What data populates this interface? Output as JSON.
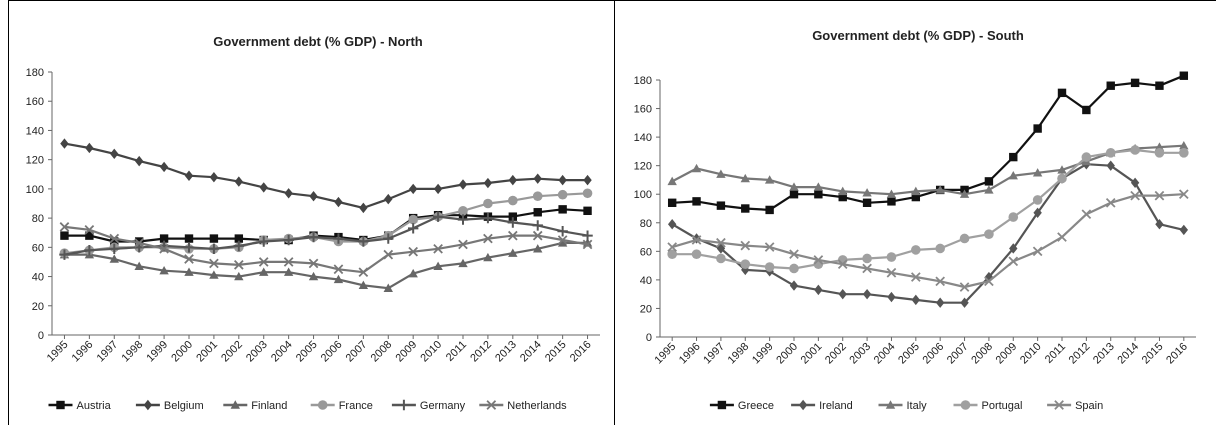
{
  "chart_data": [
    {
      "type": "line",
      "title": "Government debt (% GDP) - North",
      "xlabel": "",
      "ylabel": "",
      "ylim": [
        0,
        180
      ],
      "yticks": [
        0,
        20,
        40,
        60,
        80,
        100,
        120,
        140,
        160,
        180
      ],
      "grid": false,
      "legend": "bottom",
      "x": [
        "1995",
        "1996",
        "1997",
        "1998",
        "1999",
        "2000",
        "2001",
        "2002",
        "2003",
        "2004",
        "2005",
        "2006",
        "2007",
        "2008",
        "2009",
        "2010",
        "2011",
        "2012",
        "2013",
        "2014",
        "2015",
        "2016"
      ],
      "series": [
        {
          "name": "Austria",
          "marker": "square",
          "color": "#111111",
          "values": [
            68,
            68,
            64,
            64,
            66,
            66,
            66,
            66,
            65,
            65,
            68,
            67,
            65,
            68,
            80,
            82,
            82,
            81,
            81,
            84,
            86,
            85
          ]
        },
        {
          "name": "Belgium",
          "marker": "diamond",
          "color": "#444444",
          "values": [
            131,
            128,
            124,
            119,
            115,
            109,
            108,
            105,
            101,
            97,
            95,
            91,
            87,
            93,
            100,
            100,
            103,
            104,
            106,
            107,
            106,
            106
          ]
        },
        {
          "name": "Finland",
          "marker": "triangle",
          "color": "#666666",
          "values": [
            55,
            55,
            52,
            47,
            44,
            43,
            41,
            40,
            43,
            43,
            40,
            38,
            34,
            32,
            42,
            47,
            49,
            53,
            56,
            59,
            63,
            63
          ]
        },
        {
          "name": "France",
          "marker": "circle",
          "color": "#999999",
          "values": [
            56,
            58,
            60,
            60,
            60,
            59,
            59,
            60,
            65,
            66,
            67,
            64,
            64,
            68,
            79,
            81,
            85,
            90,
            92,
            95,
            96,
            97
          ]
        },
        {
          "name": "Germany",
          "marker": "plus",
          "color": "#555555",
          "values": [
            55,
            58,
            59,
            60,
            61,
            60,
            59,
            61,
            64,
            65,
            67,
            66,
            64,
            66,
            73,
            81,
            79,
            80,
            77,
            75,
            71,
            68
          ]
        },
        {
          "name": "Netherlands",
          "marker": "x",
          "color": "#777777",
          "values": [
            74,
            72,
            66,
            63,
            59,
            52,
            49,
            48,
            50,
            50,
            49,
            45,
            43,
            55,
            57,
            59,
            62,
            66,
            68,
            68,
            65,
            62
          ]
        }
      ]
    },
    {
      "type": "line",
      "title": "Government debt (% GDP) - South",
      "xlabel": "",
      "ylabel": "",
      "ylim": [
        0,
        180
      ],
      "yticks": [
        0,
        20,
        40,
        60,
        80,
        100,
        120,
        140,
        160,
        180
      ],
      "grid": false,
      "legend": "bottom",
      "x": [
        "1995",
        "1996",
        "1997",
        "1998",
        "1999",
        "2000",
        "2001",
        "2002",
        "2003",
        "2004",
        "2005",
        "2006",
        "2007",
        "2008",
        "2009",
        "2010",
        "2011",
        "2012",
        "2013",
        "2014",
        "2015",
        "2016"
      ],
      "series": [
        {
          "name": "Greece",
          "marker": "square",
          "color": "#111111",
          "values": [
            94,
            95,
            92,
            90,
            89,
            100,
            100,
            98,
            94,
            95,
            98,
            103,
            103,
            109,
            126,
            146,
            171,
            159,
            176,
            178,
            176,
            183
          ]
        },
        {
          "name": "Ireland",
          "marker": "diamond",
          "color": "#555555",
          "values": [
            79,
            69,
            62,
            47,
            46,
            36,
            33,
            30,
            30,
            28,
            26,
            24,
            24,
            42,
            62,
            87,
            111,
            121,
            120,
            108,
            79,
            75
          ]
        },
        {
          "name": "Italy",
          "marker": "triangle",
          "color": "#777777",
          "values": [
            109,
            118,
            114,
            111,
            110,
            105,
            105,
            102,
            101,
            100,
            102,
            103,
            100,
            103,
            113,
            115,
            117,
            123,
            129,
            132,
            133,
            134
          ]
        },
        {
          "name": "Portugal",
          "marker": "circle",
          "color": "#a0a0a0",
          "values": [
            58,
            58,
            55,
            51,
            49,
            48,
            51,
            54,
            55,
            56,
            61,
            62,
            69,
            72,
            84,
            96,
            111,
            126,
            129,
            131,
            129,
            129
          ]
        },
        {
          "name": "Spain",
          "marker": "x",
          "color": "#888888",
          "values": [
            63,
            68,
            66,
            64,
            63,
            58,
            54,
            51,
            48,
            45,
            42,
            39,
            35,
            39,
            53,
            60,
            70,
            86,
            94,
            99,
            99,
            100
          ]
        }
      ]
    }
  ]
}
